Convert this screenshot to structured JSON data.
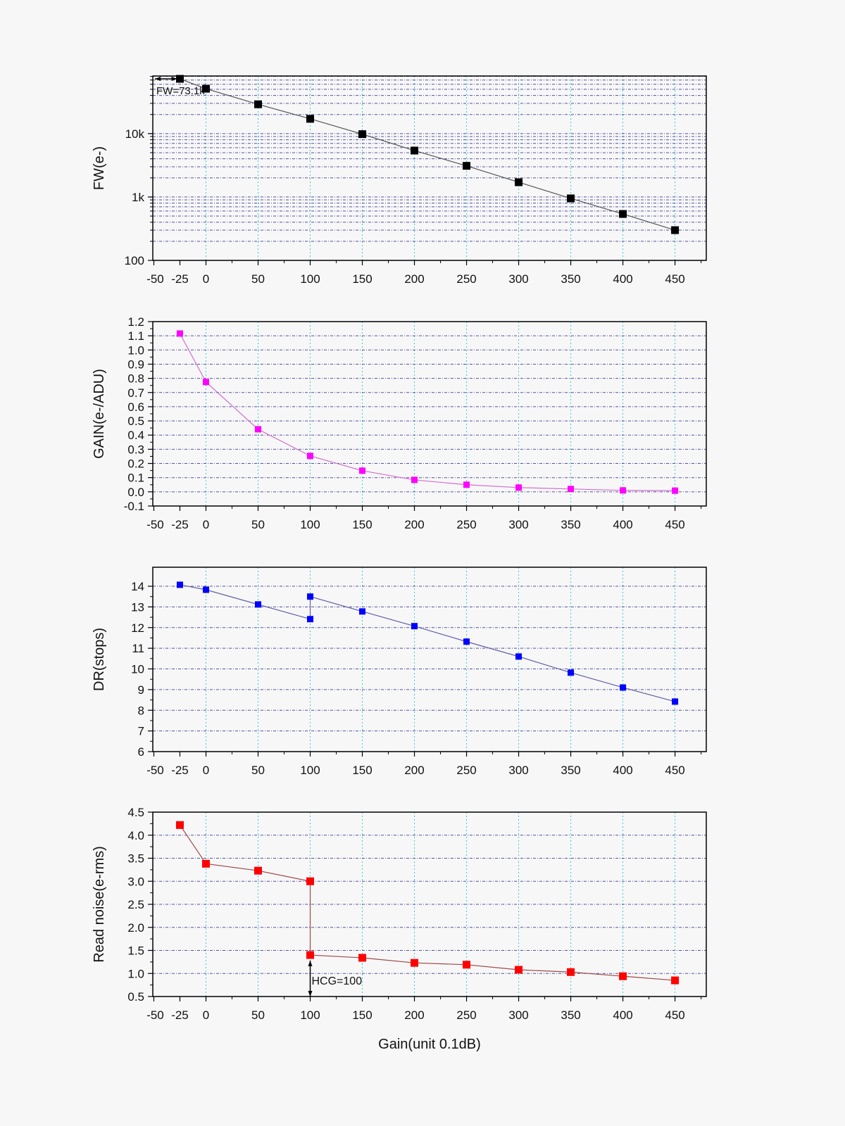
{
  "chart_data": [
    {
      "type": "line",
      "ylabel": "FW(e-)",
      "yscale": "log",
      "ylim": [
        100,
        81000
      ],
      "xlim": [
        -51,
        480
      ],
      "xticks": [
        -50,
        -25,
        0,
        50,
        100,
        150,
        200,
        250,
        300,
        350,
        400,
        450
      ],
      "yticks": [
        100,
        1000,
        10000
      ],
      "ytick_labels": [
        "100",
        "1k",
        "10k"
      ],
      "grid": true,
      "color": "#000000",
      "line_color": "#555555",
      "x": [
        -25,
        0,
        50,
        100,
        150,
        200,
        250,
        300,
        350,
        400,
        450
      ],
      "y": [
        73100,
        51000,
        29000,
        17100,
        9800,
        5400,
        3100,
        1710,
        950,
        540,
        300
      ],
      "annotation": {
        "text": "FW=73.1k",
        "x": -25,
        "y": 73100
      }
    },
    {
      "type": "line",
      "ylabel": "GAIN(e-/ADU)",
      "yscale": "linear",
      "ylim": [
        -0.1,
        1.2
      ],
      "xlim": [
        -51,
        480
      ],
      "xticks": [
        -50,
        -25,
        0,
        50,
        100,
        150,
        200,
        250,
        300,
        350,
        400,
        450
      ],
      "yticks": [
        -0.1,
        0.0,
        0.1,
        0.2,
        0.3,
        0.4,
        0.5,
        0.6,
        0.7,
        0.8,
        0.9,
        1.0,
        1.1,
        1.2
      ],
      "ytick_labels": [
        "-0.1",
        "0.0",
        "0.1",
        "0.2",
        "0.3",
        "0.4",
        "0.5",
        "0.6",
        "0.7",
        "0.8",
        "0.9",
        "1.0",
        "1.1",
        "1.2"
      ],
      "grid": true,
      "color": "#ff00ff",
      "line_color": "#d070d0",
      "x": [
        -25,
        0,
        50,
        100,
        150,
        200,
        250,
        300,
        350,
        400,
        450
      ],
      "y": [
        1.116,
        0.774,
        0.441,
        0.253,
        0.149,
        0.084,
        0.05,
        0.03,
        0.02,
        0.01,
        0.008
      ]
    },
    {
      "type": "line",
      "ylabel": "DR(stops)",
      "yscale": "linear",
      "ylim": [
        6,
        14.92
      ],
      "xlim": [
        -51,
        480
      ],
      "xticks": [
        -50,
        -25,
        0,
        50,
        100,
        150,
        200,
        250,
        300,
        350,
        400,
        450
      ],
      "yticks": [
        6,
        7,
        8,
        9,
        10,
        11,
        12,
        13,
        14
      ],
      "ytick_labels": [
        "6",
        "7",
        "8",
        "9",
        "10",
        "11",
        "12",
        "13",
        "14"
      ],
      "grid": true,
      "color": "#0000ff",
      "line_color": "#6060a8",
      "x": [
        -25,
        0,
        50,
        100,
        100,
        150,
        200,
        250,
        300,
        350,
        400,
        450
      ],
      "y": [
        14.07,
        13.83,
        13.12,
        12.41,
        13.5,
        12.78,
        12.07,
        11.32,
        10.6,
        9.82,
        9.1,
        8.42
      ]
    },
    {
      "type": "line",
      "ylabel": "Read noise(e-rms)",
      "xlabel": "Gain(unit 0.1dB)",
      "yscale": "linear",
      "ylim": [
        0.5,
        4.5
      ],
      "xlim": [
        -51,
        480
      ],
      "xticks": [
        -50,
        -25,
        0,
        50,
        100,
        150,
        200,
        250,
        300,
        350,
        400,
        450
      ],
      "yticks": [
        0.5,
        1.0,
        1.5,
        2.0,
        2.5,
        3.0,
        3.5,
        4.0,
        4.5
      ],
      "ytick_labels": [
        "0.5",
        "1.0",
        "1.5",
        "2.0",
        "2.5",
        "3.0",
        "3.5",
        "4.0",
        "4.5"
      ],
      "grid": true,
      "color": "#ff0000",
      "line_color": "#a04848",
      "x": [
        -25,
        0,
        50,
        100,
        100,
        150,
        200,
        250,
        300,
        350,
        400,
        450
      ],
      "y": [
        4.22,
        3.38,
        3.23,
        3.0,
        1.4,
        1.34,
        1.23,
        1.19,
        1.08,
        1.03,
        0.94,
        0.85
      ],
      "annotation": {
        "text": "HCG=100",
        "x": 100,
        "y": 1.4
      }
    }
  ]
}
